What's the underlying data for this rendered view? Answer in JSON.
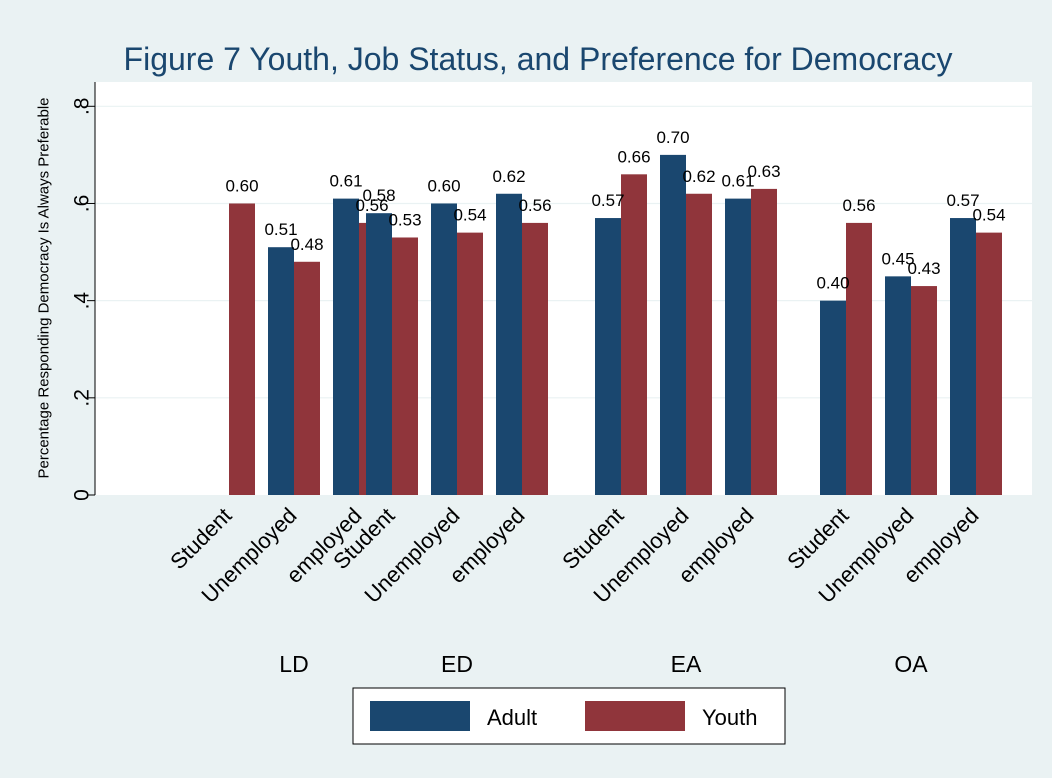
{
  "colors": {
    "background": "#eaf2f3",
    "plot_background": "#ffffff",
    "grid": "#eaf2f3",
    "adult": "#1a476f",
    "youth": "#90353b",
    "title": "#1a476f",
    "text": "#000000"
  },
  "chart_data": {
    "type": "bar",
    "title": "Figure 7 Youth, Job Status, and Preference for Democracy",
    "ylabel": "Percentage Responding Democracy Is Always Preferable",
    "xlabel": "",
    "ylim": [
      0,
      0.85
    ],
    "yticks": [
      0,
      0.2,
      0.4,
      0.6,
      0.8
    ],
    "ytick_labels": [
      "0",
      ".2",
      ".4",
      ".6",
      ".8"
    ],
    "grid": true,
    "legend_position": "bottom",
    "groups": [
      "LD",
      "ED",
      "EA",
      "OA"
    ],
    "categories": [
      "Student",
      "Unemployed",
      "employed"
    ],
    "series": [
      {
        "name": "Adult",
        "values": [
          [
            null,
            0.51,
            0.61
          ],
          [
            0.58,
            0.6,
            0.62
          ],
          [
            0.57,
            0.7,
            0.61
          ],
          [
            0.4,
            0.45,
            0.57
          ]
        ],
        "labels": [
          [
            "",
            "0.51",
            "0.61"
          ],
          [
            "0.58",
            "0.60",
            "0.62"
          ],
          [
            "0.57",
            "0.70",
            "0.61"
          ],
          [
            "0.40",
            "0.45",
            "0.57"
          ]
        ]
      },
      {
        "name": "Youth",
        "values": [
          [
            0.6,
            0.48,
            0.56
          ],
          [
            0.53,
            0.54,
            0.56
          ],
          [
            0.66,
            0.62,
            0.63
          ],
          [
            0.56,
            0.43,
            0.54
          ]
        ],
        "labels": [
          [
            "0.60",
            "0.48",
            "0.56"
          ],
          [
            "0.53",
            "0.54",
            "0.56"
          ],
          [
            "0.66",
            "0.62",
            "0.63"
          ],
          [
            "0.56",
            "0.43",
            "0.54"
          ]
        ]
      }
    ]
  }
}
